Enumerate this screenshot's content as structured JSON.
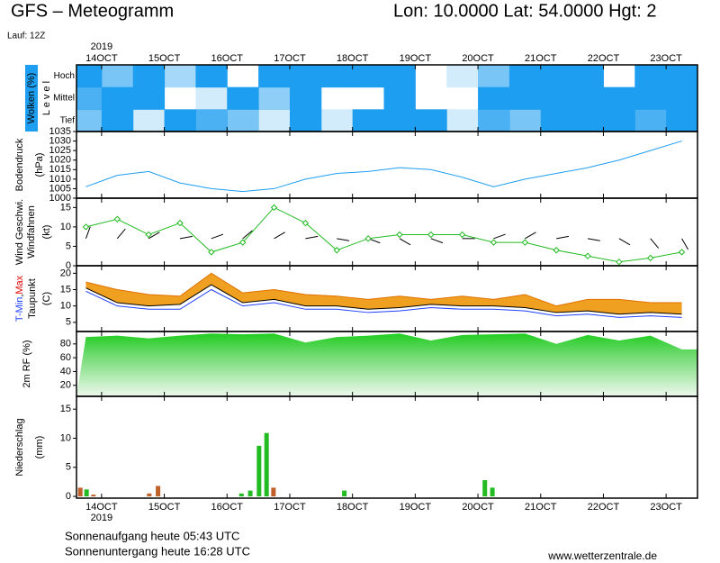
{
  "header": {
    "title": "GFS – Meteogramm",
    "location": "Lon: 10.0000 Lat: 54.0000 Hgt: 2",
    "run": "Lauf: 12Z"
  },
  "footer": {
    "sunrise": "Sonnenaufgang heute 05:43 UTC",
    "sunset": "Sonnenuntergang heute 16:28 UTC",
    "source": "www.wetterzentrale.de"
  },
  "chart_data": [
    {
      "type": "heatmap",
      "ylabel": "Wolken (%)",
      "ylabel2": "L e v e l",
      "year_label": "2019",
      "x": [
        13.75,
        14.25,
        14.75,
        15.25,
        15.75,
        16.25,
        16.75,
        17.25,
        17.75,
        18.25,
        18.75,
        19.25,
        19.75,
        20.25,
        20.75,
        21.25,
        21.75,
        22.25,
        22.75,
        23.25
      ],
      "xlim": [
        13.6,
        23.5
      ],
      "xticks": [
        {
          "value": 14,
          "label": "14OCT"
        },
        {
          "value": 15,
          "label": "15OCT"
        },
        {
          "value": 16,
          "label": "16OCT"
        },
        {
          "value": 17,
          "label": "17OCT"
        },
        {
          "value": 18,
          "label": "18OCT"
        },
        {
          "value": 19,
          "label": "19OCT"
        },
        {
          "value": 20,
          "label": "20OCT"
        },
        {
          "value": 21,
          "label": "21OCT"
        },
        {
          "value": 22,
          "label": "22OCT"
        },
        {
          "value": 23,
          "label": "23OCT"
        }
      ],
      "rows": [
        "Hoch",
        "Mittel",
        "Tief"
      ],
      "color": "#1e9ef0",
      "values": [
        [
          100,
          60,
          100,
          40,
          100,
          0,
          100,
          100,
          100,
          100,
          100,
          0,
          20,
          60,
          100,
          100,
          100,
          0,
          100,
          100
        ],
        [
          80,
          100,
          100,
          0,
          20,
          100,
          50,
          100,
          0,
          0,
          100,
          0,
          0,
          100,
          100,
          100,
          100,
          100,
          100,
          100
        ],
        [
          60,
          100,
          20,
          100,
          80,
          60,
          20,
          100,
          20,
          100,
          100,
          100,
          20,
          80,
          60,
          100,
          100,
          100,
          80,
          100
        ]
      ]
    },
    {
      "type": "line",
      "ylabel": "Bodendruck",
      "yunit": "(hPa)",
      "x": [
        13.75,
        14.25,
        14.75,
        15.25,
        15.75,
        16.25,
        16.75,
        17.25,
        17.75,
        18.25,
        18.75,
        19.25,
        19.75,
        20.25,
        20.75,
        21.25,
        21.75,
        22.25,
        22.75,
        23.25
      ],
      "xlim": [
        13.6,
        23.5
      ],
      "ylim": [
        1000,
        1035
      ],
      "yticks": [
        1000,
        1005,
        1010,
        1015,
        1020,
        1025,
        1030,
        1035
      ],
      "series": [
        {
          "color": "#1e9ef0",
          "values": [
            1006,
            1012,
            1014,
            1008,
            1005,
            1003.5,
            1005,
            1010,
            1013,
            1014,
            1016,
            1015,
            1011,
            1006,
            1010,
            1013,
            1016,
            1020,
            1025,
            1030
          ]
        }
      ]
    },
    {
      "type": "wind",
      "ylabel": "Wind Geschwi.",
      "ylabel2": "Windfahnen",
      "yunit": "(kt)",
      "x": [
        13.75,
        14.25,
        14.75,
        15.25,
        15.75,
        16.25,
        16.75,
        17.25,
        17.75,
        18.25,
        18.75,
        19.25,
        19.75,
        20.25,
        20.75,
        21.25,
        21.75,
        22.25,
        22.75,
        23.25
      ],
      "xlim": [
        13.6,
        23.5
      ],
      "ylim": [
        0,
        17.4
      ],
      "yticks": [
        0,
        5,
        10,
        15
      ],
      "series": [
        {
          "color": "#22bb22",
          "values": [
            10,
            12,
            8,
            11,
            3.5,
            6,
            15,
            11,
            4,
            7,
            8,
            8,
            8,
            6,
            6,
            4,
            2.5,
            1,
            2,
            3.5
          ]
        }
      ],
      "direction": [
        200,
        220,
        240,
        260,
        250,
        230,
        240,
        260,
        280,
        290,
        300,
        290,
        270,
        250,
        240,
        260,
        280,
        300,
        320,
        330
      ]
    },
    {
      "type": "band",
      "ylabel_min": "T-Min",
      "ylabel_sep": ",",
      "ylabel_max": "Max",
      "ylabel2": "Taupunkt",
      "yunit": "(C)",
      "x": [
        13.75,
        14.25,
        14.75,
        15.25,
        15.75,
        16.25,
        16.75,
        17.25,
        17.75,
        18.25,
        18.75,
        19.25,
        19.75,
        20.25,
        20.75,
        21.25,
        21.75,
        22.25,
        22.75,
        23.25
      ],
      "xlim": [
        13.6,
        23.5
      ],
      "ylim": [
        2.2,
        22.3
      ],
      "yticks": [
        5,
        10,
        15,
        20
      ],
      "fill": "#f0a020",
      "series": [
        {
          "color": "#e07000",
          "values": [
            17.3,
            15,
            13.5,
            13,
            20,
            14,
            15,
            13.5,
            13,
            12,
            13,
            12,
            13,
            12,
            13.5,
            10,
            12,
            12,
            11,
            11
          ]
        },
        {
          "color": "#000000",
          "values": [
            15.5,
            11,
            10,
            10.5,
            16.5,
            11,
            12,
            10,
            10,
            9,
            9.5,
            10.5,
            10,
            10,
            9.5,
            8,
            8.5,
            7.5,
            8,
            7.5
          ]
        },
        {
          "color": "#2040ff",
          "values": [
            14.5,
            10,
            9,
            9,
            15,
            10,
            11,
            9,
            9,
            8,
            8.5,
            9.5,
            9,
            9,
            8.5,
            7,
            7.5,
            6.5,
            7,
            6.5
          ]
        }
      ]
    },
    {
      "type": "area",
      "ylabel": "2m RF (%)",
      "x": [
        13.75,
        14.25,
        14.75,
        15.25,
        15.75,
        16.25,
        16.75,
        17.25,
        17.75,
        18.25,
        18.75,
        19.25,
        19.75,
        20.25,
        20.75,
        21.25,
        21.75,
        22.25,
        22.75,
        23.25
      ],
      "xlim": [
        13.6,
        23.5
      ],
      "ylim": [
        4,
        98
      ],
      "yticks": [
        20,
        40,
        60,
        80
      ],
      "series": [
        {
          "color": "#22cc22",
          "values": [
            90,
            92,
            88,
            92,
            95,
            94,
            95,
            82,
            90,
            92,
            95,
            85,
            93,
            94,
            95,
            80,
            93,
            85,
            92,
            72
          ]
        }
      ]
    },
    {
      "type": "bar",
      "ylabel": "Niederschlag",
      "yunit": "(mm)",
      "year_label": "2019",
      "x": [
        13.66,
        13.76,
        13.87,
        14.76,
        14.9,
        16.23,
        16.37,
        16.51,
        16.63,
        16.74,
        17.87,
        20.11,
        20.23
      ],
      "values": [
        1.5,
        1.2,
        0.3,
        0.5,
        1.8,
        0.5,
        1.0,
        8.7,
        10.9,
        1.5,
        1.0,
        2.8,
        1.5
      ],
      "colors": [
        "#c0602a",
        "#22bb22",
        "#c0602a",
        "#c0602a",
        "#c0602a",
        "#22bb22",
        "#22bb22",
        "#22bb22",
        "#22bb22",
        "#c0602a",
        "#22bb22",
        "#22bb22",
        "#22bb22"
      ],
      "xlim": [
        13.6,
        23.5
      ],
      "ylim": [
        -0.3,
        17.2
      ],
      "yticks": [
        0,
        5,
        10,
        15
      ],
      "xticks": [
        {
          "value": 14,
          "label": "14OCT"
        },
        {
          "value": 15,
          "label": "15OCT"
        },
        {
          "value": 16,
          "label": "16OCT"
        },
        {
          "value": 17,
          "label": "17OCT"
        },
        {
          "value": 18,
          "label": "18OCT"
        },
        {
          "value": 19,
          "label": "19OCT"
        },
        {
          "value": 20,
          "label": "20OCT"
        },
        {
          "value": 21,
          "label": "21OCT"
        },
        {
          "value": 22,
          "label": "22OCT"
        },
        {
          "value": 23,
          "label": "23OCT"
        }
      ]
    }
  ]
}
